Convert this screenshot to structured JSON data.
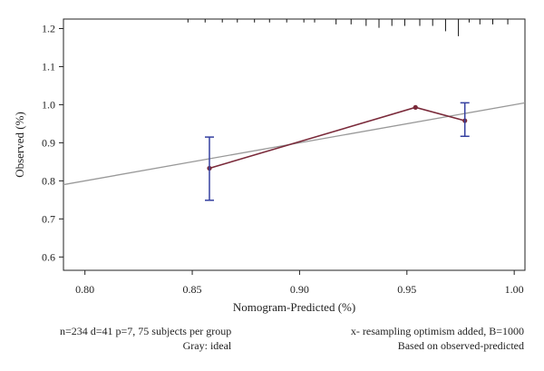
{
  "chart_data": {
    "type": "line",
    "xlabel": "Nomogram-Predicted (%)",
    "ylabel": "Observed (%)",
    "xlim": [
      0.79,
      1.005
    ],
    "ylim": [
      0.565,
      1.225
    ],
    "x_ticks": [
      0.8,
      0.85,
      0.9,
      0.95,
      1.0
    ],
    "x_tick_labels": [
      "0.80",
      "0.85",
      "0.90",
      "0.95",
      "1.00"
    ],
    "y_ticks": [
      0.6,
      0.7,
      0.8,
      0.9,
      1.0,
      1.1,
      1.2
    ],
    "y_tick_labels": [
      "0.6",
      "0.7",
      "0.8",
      "0.9",
      "1.0",
      "1.1",
      "1.2"
    ],
    "grid": false,
    "series": [
      {
        "style": "calibration line with points",
        "color": "#7a2a3a",
        "points": [
          {
            "x": 0.858,
            "y": 0.833
          },
          {
            "x": 0.954,
            "y": 0.993
          },
          {
            "x": 0.977,
            "y": 0.958
          }
        ]
      },
      {
        "style": "ideal line",
        "color": "#999999",
        "points": [
          {
            "x": 0.79,
            "y": 0.79
          },
          {
            "x": 1.005,
            "y": 1.005
          }
        ]
      }
    ],
    "error_bars": {
      "color": "#3540a0",
      "items": [
        {
          "x": 0.858,
          "low": 0.749,
          "high": 0.915
        },
        {
          "x": 0.977,
          "low": 0.917,
          "high": 1.005
        }
      ]
    },
    "rug": {
      "color": "#111111",
      "ticks": [
        {
          "x": 0.848,
          "h": 0.009
        },
        {
          "x": 0.856,
          "h": 0.009
        },
        {
          "x": 0.864,
          "h": 0.009
        },
        {
          "x": 0.871,
          "h": 0.009
        },
        {
          "x": 0.879,
          "h": 0.009
        },
        {
          "x": 0.886,
          "h": 0.009
        },
        {
          "x": 0.894,
          "h": 0.009
        },
        {
          "x": 0.902,
          "h": 0.009
        },
        {
          "x": 0.907,
          "h": 0.009
        },
        {
          "x": 0.917,
          "h": 0.014
        },
        {
          "x": 0.924,
          "h": 0.014
        },
        {
          "x": 0.931,
          "h": 0.018
        },
        {
          "x": 0.937,
          "h": 0.023
        },
        {
          "x": 0.943,
          "h": 0.018
        },
        {
          "x": 0.949,
          "h": 0.018
        },
        {
          "x": 0.956,
          "h": 0.018
        },
        {
          "x": 0.962,
          "h": 0.018
        },
        {
          "x": 0.968,
          "h": 0.032
        },
        {
          "x": 0.974,
          "h": 0.045
        },
        {
          "x": 0.979,
          "h": 0.009
        },
        {
          "x": 0.984,
          "h": 0.014
        },
        {
          "x": 0.99,
          "h": 0.014
        },
        {
          "x": 0.997,
          "h": 0.014
        }
      ]
    },
    "footnotes": {
      "left": [
        "n=234 d=41 p=7, 75 subjects per group",
        "Gray: ideal"
      ],
      "right": [
        "x- resampling optimism added, B=1000",
        "Based on observed-predicted"
      ]
    }
  }
}
